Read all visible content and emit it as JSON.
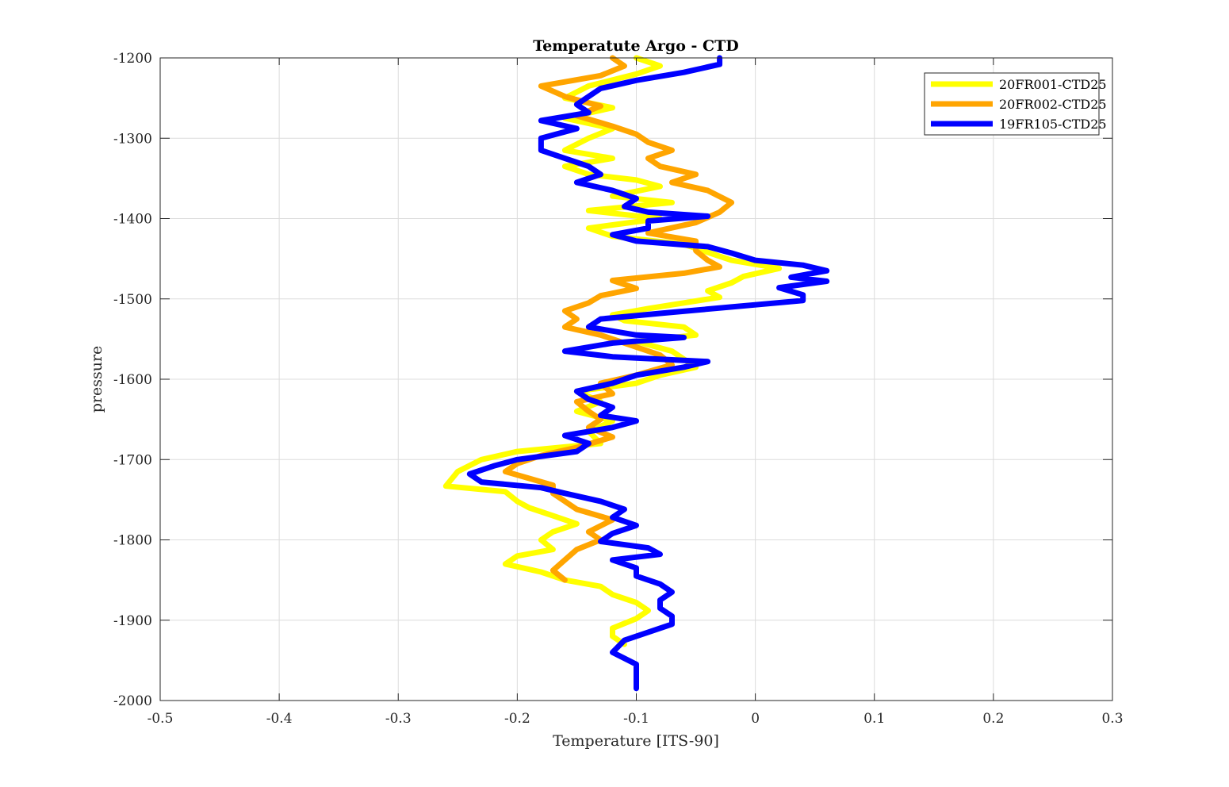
{
  "chart_data": {
    "type": "line",
    "title": "Temperatute Argo - CTD",
    "xlabel": "Temperature [ITS-90]",
    "ylabel": "pressure",
    "xlim": [
      -0.5,
      0.3
    ],
    "ylim": [
      -2000,
      -1200
    ],
    "xticks": [
      -0.5,
      -0.4,
      -0.3,
      -0.2,
      -0.1,
      0,
      0.1,
      0.2,
      0.3
    ],
    "yticks": [
      -1200,
      -1300,
      -1400,
      -1500,
      -1600,
      -1700,
      -1800,
      -1900,
      -2000
    ],
    "xtick_labels": [
      "-0.5",
      "-0.4",
      "-0.3",
      "-0.2",
      "-0.1",
      "0",
      "0.1",
      "0.2",
      "0.3"
    ],
    "ytick_labels": [
      "-1200",
      "-1300",
      "-1400",
      "-1500",
      "-1600",
      "-1700",
      "-1800",
      "-1900",
      "-2000"
    ],
    "grid": true,
    "legend_position": "top-right",
    "series": [
      {
        "name": "20FR001-CTD25",
        "color": "#FFFF00",
        "points": [
          [
            -0.1,
            -1200
          ],
          [
            -0.08,
            -1210
          ],
          [
            -0.1,
            -1220
          ],
          [
            -0.14,
            -1235
          ],
          [
            -0.16,
            -1250
          ],
          [
            -0.12,
            -1262
          ],
          [
            -0.16,
            -1275
          ],
          [
            -0.12,
            -1288
          ],
          [
            -0.14,
            -1300
          ],
          [
            -0.16,
            -1315
          ],
          [
            -0.12,
            -1325
          ],
          [
            -0.16,
            -1335
          ],
          [
            -0.14,
            -1345
          ],
          [
            -0.1,
            -1352
          ],
          [
            -0.08,
            -1360
          ],
          [
            -0.12,
            -1372
          ],
          [
            -0.07,
            -1380
          ],
          [
            -0.14,
            -1390
          ],
          [
            -0.08,
            -1400
          ],
          [
            -0.14,
            -1412
          ],
          [
            -0.12,
            -1422
          ],
          [
            -0.06,
            -1432
          ],
          [
            -0.04,
            -1442
          ],
          [
            -0.02,
            -1452
          ],
          [
            0.02,
            -1462
          ],
          [
            -0.01,
            -1472
          ],
          [
            -0.02,
            -1480
          ],
          [
            -0.04,
            -1490
          ],
          [
            -0.03,
            -1498
          ],
          [
            -0.06,
            -1505
          ],
          [
            -0.09,
            -1512
          ],
          [
            -0.12,
            -1520
          ],
          [
            -0.11,
            -1527
          ],
          [
            -0.06,
            -1535
          ],
          [
            -0.05,
            -1545
          ],
          [
            -0.1,
            -1553
          ],
          [
            -0.07,
            -1565
          ],
          [
            -0.05,
            -1585
          ],
          [
            -0.08,
            -1595
          ],
          [
            -0.1,
            -1605
          ],
          [
            -0.15,
            -1615
          ],
          [
            -0.13,
            -1628
          ],
          [
            -0.15,
            -1640
          ],
          [
            -0.12,
            -1652
          ],
          [
            -0.14,
            -1665
          ],
          [
            -0.13,
            -1680
          ],
          [
            -0.2,
            -1690
          ],
          [
            -0.23,
            -1700
          ],
          [
            -0.25,
            -1715
          ],
          [
            -0.26,
            -1733
          ],
          [
            -0.21,
            -1740
          ],
          [
            -0.2,
            -1752
          ],
          [
            -0.19,
            -1760
          ],
          [
            -0.17,
            -1770
          ],
          [
            -0.15,
            -1780
          ],
          [
            -0.17,
            -1790
          ],
          [
            -0.18,
            -1800
          ],
          [
            -0.17,
            -1812
          ],
          [
            -0.2,
            -1820
          ],
          [
            -0.21,
            -1830
          ],
          [
            -0.18,
            -1840
          ],
          [
            -0.16,
            -1850
          ],
          [
            -0.13,
            -1858
          ],
          [
            -0.12,
            -1868
          ],
          [
            -0.1,
            -1878
          ],
          [
            -0.09,
            -1888
          ],
          [
            -0.1,
            -1898
          ],
          [
            -0.12,
            -1910
          ],
          [
            -0.12,
            -1920
          ],
          [
            -0.11,
            -1930
          ]
        ]
      },
      {
        "name": "20FR002-CTD25",
        "color": "#FFA500",
        "points": [
          [
            -0.12,
            -1200
          ],
          [
            -0.11,
            -1210
          ],
          [
            -0.13,
            -1222
          ],
          [
            -0.18,
            -1235
          ],
          [
            -0.16,
            -1248
          ],
          [
            -0.13,
            -1260
          ],
          [
            -0.15,
            -1272
          ],
          [
            -0.12,
            -1285
          ],
          [
            -0.1,
            -1295
          ],
          [
            -0.09,
            -1305
          ],
          [
            -0.07,
            -1315
          ],
          [
            -0.09,
            -1325
          ],
          [
            -0.08,
            -1335
          ],
          [
            -0.05,
            -1345
          ],
          [
            -0.07,
            -1355
          ],
          [
            -0.04,
            -1365
          ],
          [
            -0.02,
            -1380
          ],
          [
            -0.03,
            -1392
          ],
          [
            -0.05,
            -1405
          ],
          [
            -0.09,
            -1418
          ],
          [
            -0.05,
            -1428
          ],
          [
            -0.05,
            -1440
          ],
          [
            -0.04,
            -1452
          ],
          [
            -0.03,
            -1460
          ],
          [
            -0.06,
            -1468
          ],
          [
            -0.12,
            -1477
          ],
          [
            -0.1,
            -1487
          ],
          [
            -0.13,
            -1496
          ],
          [
            -0.14,
            -1505
          ],
          [
            -0.16,
            -1515
          ],
          [
            -0.15,
            -1525
          ],
          [
            -0.16,
            -1535
          ],
          [
            -0.13,
            -1545
          ],
          [
            -0.11,
            -1555
          ],
          [
            -0.08,
            -1570
          ],
          [
            -0.07,
            -1582
          ],
          [
            -0.1,
            -1595
          ],
          [
            -0.13,
            -1605
          ],
          [
            -0.12,
            -1618
          ],
          [
            -0.15,
            -1628
          ],
          [
            -0.14,
            -1640
          ],
          [
            -0.13,
            -1650
          ],
          [
            -0.14,
            -1660
          ],
          [
            -0.12,
            -1672
          ],
          [
            -0.15,
            -1685
          ],
          [
            -0.18,
            -1695
          ],
          [
            -0.2,
            -1705
          ],
          [
            -0.21,
            -1715
          ],
          [
            -0.17,
            -1732
          ],
          [
            -0.17,
            -1742
          ],
          [
            -0.16,
            -1752
          ],
          [
            -0.15,
            -1762
          ],
          [
            -0.12,
            -1775
          ],
          [
            -0.14,
            -1790
          ],
          [
            -0.13,
            -1800
          ],
          [
            -0.15,
            -1812
          ],
          [
            -0.16,
            -1825
          ],
          [
            -0.17,
            -1838
          ],
          [
            -0.16,
            -1850
          ]
        ]
      },
      {
        "name": "19FR105-CTD25",
        "color": "#0000FF",
        "points": [
          [
            -0.03,
            -1200
          ],
          [
            -0.03,
            -1208
          ],
          [
            -0.06,
            -1218
          ],
          [
            -0.1,
            -1228
          ],
          [
            -0.13,
            -1238
          ],
          [
            -0.14,
            -1248
          ],
          [
            -0.15,
            -1258
          ],
          [
            -0.14,
            -1268
          ],
          [
            -0.18,
            -1278
          ],
          [
            -0.15,
            -1288
          ],
          [
            -0.18,
            -1300
          ],
          [
            -0.18,
            -1315
          ],
          [
            -0.16,
            -1325
          ],
          [
            -0.14,
            -1335
          ],
          [
            -0.13,
            -1345
          ],
          [
            -0.15,
            -1355
          ],
          [
            -0.12,
            -1365
          ],
          [
            -0.1,
            -1375
          ],
          [
            -0.11,
            -1385
          ],
          [
            -0.09,
            -1392
          ],
          [
            -0.04,
            -1397
          ],
          [
            -0.09,
            -1403
          ],
          [
            -0.09,
            -1412
          ],
          [
            -0.12,
            -1420
          ],
          [
            -0.1,
            -1428
          ],
          [
            -0.04,
            -1435
          ],
          [
            -0.02,
            -1443
          ],
          [
            0.0,
            -1452
          ],
          [
            0.04,
            -1458
          ],
          [
            0.06,
            -1465
          ],
          [
            0.03,
            -1473
          ],
          [
            0.06,
            -1478
          ],
          [
            0.02,
            -1486
          ],
          [
            0.04,
            -1495
          ],
          [
            0.04,
            -1502
          ],
          [
            -0.02,
            -1510
          ],
          [
            -0.08,
            -1518
          ],
          [
            -0.13,
            -1525
          ],
          [
            -0.14,
            -1535
          ],
          [
            -0.1,
            -1545
          ],
          [
            -0.06,
            -1548
          ],
          [
            -0.12,
            -1555
          ],
          [
            -0.16,
            -1565
          ],
          [
            -0.12,
            -1572
          ],
          [
            -0.04,
            -1578
          ],
          [
            -0.06,
            -1585
          ],
          [
            -0.1,
            -1595
          ],
          [
            -0.12,
            -1605
          ],
          [
            -0.15,
            -1615
          ],
          [
            -0.14,
            -1625
          ],
          [
            -0.12,
            -1635
          ],
          [
            -0.13,
            -1645
          ],
          [
            -0.1,
            -1652
          ],
          [
            -0.12,
            -1660
          ],
          [
            -0.16,
            -1670
          ],
          [
            -0.14,
            -1680
          ],
          [
            -0.15,
            -1690
          ],
          [
            -0.2,
            -1700
          ],
          [
            -0.22,
            -1708
          ],
          [
            -0.24,
            -1718
          ],
          [
            -0.23,
            -1728
          ],
          [
            -0.18,
            -1735
          ],
          [
            -0.16,
            -1742
          ],
          [
            -0.13,
            -1752
          ],
          [
            -0.11,
            -1762
          ],
          [
            -0.12,
            -1772
          ],
          [
            -0.1,
            -1782
          ],
          [
            -0.12,
            -1792
          ],
          [
            -0.13,
            -1802
          ],
          [
            -0.09,
            -1810
          ],
          [
            -0.08,
            -1818
          ],
          [
            -0.12,
            -1825
          ],
          [
            -0.1,
            -1835
          ],
          [
            -0.1,
            -1845
          ],
          [
            -0.08,
            -1855
          ],
          [
            -0.07,
            -1865
          ],
          [
            -0.08,
            -1875
          ],
          [
            -0.08,
            -1885
          ],
          [
            -0.07,
            -1895
          ],
          [
            -0.07,
            -1905
          ],
          [
            -0.09,
            -1915
          ],
          [
            -0.11,
            -1925
          ],
          [
            -0.12,
            -1940
          ],
          [
            -0.1,
            -1955
          ],
          [
            -0.1,
            -1970
          ],
          [
            -0.1,
            -1985
          ]
        ]
      }
    ]
  }
}
